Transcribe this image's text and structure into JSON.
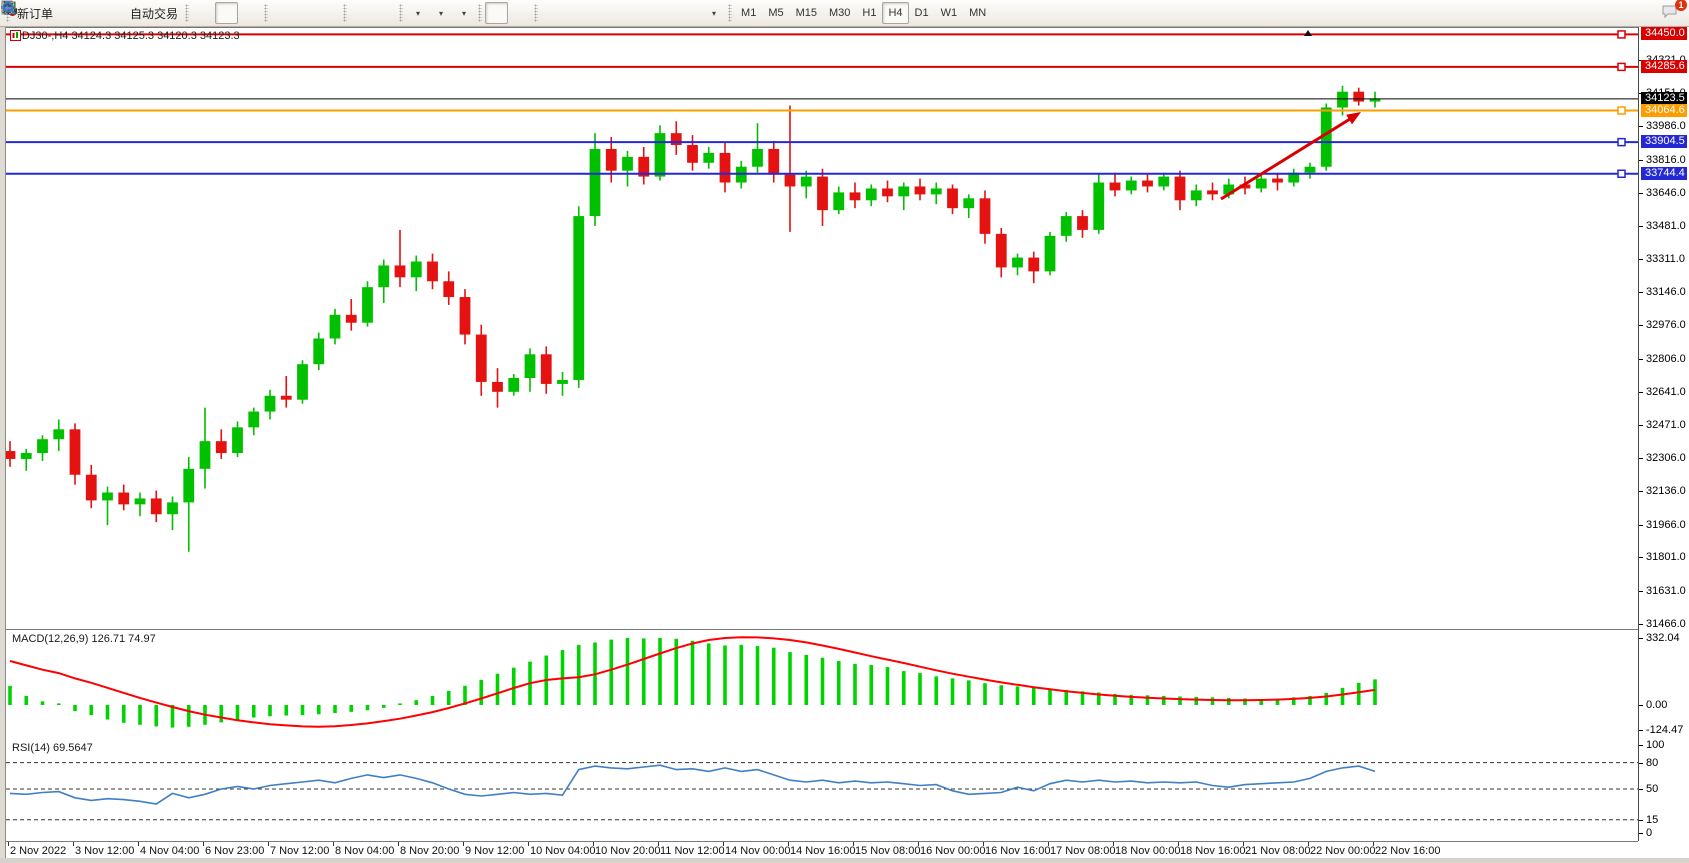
{
  "toolbar": {
    "new_order": "新订单",
    "auto_trading": "自动交易",
    "timeframes": [
      "M1",
      "M5",
      "M15",
      "M30",
      "H1",
      "H4",
      "D1",
      "W1",
      "MN"
    ],
    "active_timeframe": "H4",
    "notification_badge": "1",
    "icons": [
      "new-order-icon",
      "marketwatch-icon",
      "terminal-icon",
      "sound-icon",
      "autotrade-icon",
      "bar-chart-icon",
      "candle-chart-icon",
      "line-chart-icon",
      "zoom-in-icon",
      "zoom-out-icon",
      "tile-windows-icon",
      "autoscroll-icon",
      "chart-shift-icon",
      "indicators-icon",
      "periods-icon",
      "templates-icon",
      "cursor-icon",
      "crosshair-icon",
      "vline-icon",
      "hline-icon",
      "trendline-icon",
      "channel-icon",
      "fibonacci-icon",
      "text-icon",
      "label-icon",
      "shapes-icon",
      "search-icon",
      "chat-icon"
    ]
  },
  "chart": {
    "header": "DJ30-,H4  34124.3 34125.3 34120.3 34123.3",
    "price_ticks": [
      "34321.0",
      "34151.0",
      "33986.0",
      "33816.0",
      "33646.0",
      "33481.0",
      "33311.0",
      "33146.0",
      "32976.0",
      "32806.0",
      "32641.0",
      "32471.0",
      "32306.0",
      "32136.0",
      "31966.0",
      "31801.0",
      "31631.0",
      "31466.0"
    ],
    "hlines": [
      {
        "price": 34450.0,
        "label": "34450.0",
        "color": "#d90000",
        "width": 2,
        "marker": true
      },
      {
        "price": 34285.6,
        "label": "34285.6",
        "color": "#d90000",
        "width": 2,
        "marker": true
      },
      {
        "price": 34123.5,
        "label": "34123.5",
        "color": "#000000",
        "width": 1,
        "marker": false
      },
      {
        "price": 34064.6,
        "label": "34064.6",
        "color": "#ff9c00",
        "width": 2,
        "marker": true
      },
      {
        "price": 33904.5,
        "label": "33904.5",
        "color": "#2428d2",
        "width": 2,
        "marker": true
      },
      {
        "price": 33744.4,
        "label": "33744.4",
        "color": "#2428d2",
        "width": 2,
        "marker": true
      }
    ],
    "current_price": 34123.5,
    "time_labels": [
      "2 Nov 2022",
      "3 Nov 12:00",
      "4 Nov 04:00",
      "6 Nov 23:00",
      "7 Nov 12:00",
      "8 Nov 04:00",
      "8 Nov 20:00",
      "9 Nov 12:00",
      "10 Nov 04:00",
      "10 Nov 20:00",
      "11 Nov 12:00",
      "14 Nov 00:00",
      "14 Nov 16:00",
      "15 Nov 08:00",
      "16 Nov 00:00",
      "16 Nov 16:00",
      "17 Nov 08:00",
      "18 Nov 00:00",
      "18 Nov 16:00",
      "21 Nov 08:00",
      "22 Nov 00:00",
      "22 Nov 16:00"
    ]
  },
  "chart_data": {
    "type": "candlestick",
    "symbol": "DJ30-",
    "period": "H4",
    "title": "DJ30-,H4  34124.3 34125.3 34120.3 34123.3",
    "ylim": [
      31440,
      34480
    ],
    "candles_ohlc": [
      [
        32340,
        32390,
        32260,
        32300
      ],
      [
        32300,
        32350,
        32240,
        32330
      ],
      [
        32330,
        32420,
        32290,
        32400
      ],
      [
        32400,
        32500,
        32340,
        32450
      ],
      [
        32450,
        32480,
        32170,
        32220
      ],
      [
        32220,
        32270,
        32050,
        32090
      ],
      [
        32090,
        32160,
        31965,
        32130
      ],
      [
        32130,
        32170,
        32040,
        32070
      ],
      [
        32070,
        32130,
        32010,
        32100
      ],
      [
        32100,
        32140,
        31980,
        32020
      ],
      [
        32020,
        32110,
        31940,
        32080
      ],
      [
        32080,
        32310,
        31830,
        32250
      ],
      [
        32250,
        32560,
        32150,
        32390
      ],
      [
        32390,
        32450,
        32300,
        32330
      ],
      [
        32330,
        32490,
        32310,
        32460
      ],
      [
        32460,
        32560,
        32420,
        32540
      ],
      [
        32540,
        32650,
        32500,
        32620
      ],
      [
        32620,
        32720,
        32560,
        32600
      ],
      [
        32600,
        32800,
        32580,
        32780
      ],
      [
        32780,
        32940,
        32750,
        32910
      ],
      [
        32910,
        33060,
        32880,
        33030
      ],
      [
        33030,
        33110,
        32950,
        32990
      ],
      [
        32990,
        33200,
        32970,
        33170
      ],
      [
        33170,
        33310,
        33090,
        33280
      ],
      [
        33280,
        33460,
        33170,
        33220
      ],
      [
        33220,
        33330,
        33150,
        33300
      ],
      [
        33300,
        33340,
        33160,
        33200
      ],
      [
        33200,
        33250,
        33080,
        33120
      ],
      [
        33120,
        33160,
        32880,
        32930
      ],
      [
        32930,
        32980,
        32620,
        32690
      ],
      [
        32690,
        32760,
        32560,
        32640
      ],
      [
        32640,
        32730,
        32620,
        32710
      ],
      [
        32710,
        32860,
        32640,
        32830
      ],
      [
        32830,
        32870,
        32630,
        32680
      ],
      [
        32680,
        32740,
        32620,
        32700
      ],
      [
        32700,
        33580,
        32660,
        33530
      ],
      [
        33530,
        33950,
        33480,
        33870
      ],
      [
        33870,
        33930,
        33700,
        33760
      ],
      [
        33760,
        33860,
        33680,
        33830
      ],
      [
        33830,
        33880,
        33690,
        33730
      ],
      [
        33730,
        33990,
        33710,
        33950
      ],
      [
        33950,
        34010,
        33840,
        33890
      ],
      [
        33890,
        33940,
        33760,
        33800
      ],
      [
        33800,
        33880,
        33770,
        33850
      ],
      [
        33850,
        33900,
        33650,
        33700
      ],
      [
        33700,
        33810,
        33670,
        33780
      ],
      [
        33780,
        34000,
        33750,
        33870
      ],
      [
        33870,
        33910,
        33700,
        33740
      ],
      [
        33740,
        34090,
        33450,
        33680
      ],
      [
        33680,
        33760,
        33620,
        33730
      ],
      [
        33730,
        33770,
        33480,
        33560
      ],
      [
        33560,
        33680,
        33540,
        33650
      ],
      [
        33650,
        33700,
        33570,
        33610
      ],
      [
        33610,
        33690,
        33580,
        33670
      ],
      [
        33670,
        33710,
        33600,
        33630
      ],
      [
        33630,
        33700,
        33560,
        33680
      ],
      [
        33680,
        33720,
        33610,
        33640
      ],
      [
        33640,
        33700,
        33590,
        33670
      ],
      [
        33670,
        33690,
        33540,
        33570
      ],
      [
        33570,
        33640,
        33520,
        33620
      ],
      [
        33620,
        33660,
        33390,
        33440
      ],
      [
        33440,
        33470,
        33220,
        33270
      ],
      [
        33270,
        33340,
        33230,
        33320
      ],
      [
        33320,
        33350,
        33190,
        33250
      ],
      [
        33250,
        33450,
        33230,
        33430
      ],
      [
        33430,
        33550,
        33400,
        33530
      ],
      [
        33530,
        33560,
        33420,
        33460
      ],
      [
        33460,
        33740,
        33440,
        33700
      ],
      [
        33700,
        33750,
        33630,
        33660
      ],
      [
        33660,
        33730,
        33640,
        33710
      ],
      [
        33710,
        33740,
        33650,
        33680
      ],
      [
        33680,
        33750,
        33660,
        33730
      ],
      [
        33730,
        33760,
        33560,
        33610
      ],
      [
        33610,
        33690,
        33580,
        33660
      ],
      [
        33660,
        33700,
        33610,
        33640
      ],
      [
        33640,
        33720,
        33620,
        33690
      ],
      [
        33690,
        33730,
        33640,
        33670
      ],
      [
        33670,
        33740,
        33650,
        33720
      ],
      [
        33720,
        33750,
        33660,
        33700
      ],
      [
        33700,
        33770,
        33680,
        33750
      ],
      [
        33750,
        33800,
        33720,
        33780
      ],
      [
        33780,
        34100,
        33760,
        34080
      ],
      [
        34080,
        34190,
        34040,
        34160
      ],
      [
        34160,
        34180,
        34090,
        34110
      ],
      [
        34110,
        34160,
        34080,
        34124
      ]
    ],
    "indicators": {
      "macd": {
        "label": "MACD(12,26,9) 126.71 74.97",
        "params": "12,26,9",
        "value": 126.71,
        "signal_value": 74.97,
        "axis": [
          "332.04",
          "0.00",
          "-124.47"
        ],
        "histogram": [
          95,
          45,
          18,
          8,
          -30,
          -50,
          -72,
          -88,
          -98,
          -106,
          -112,
          -108,
          -98,
          -86,
          -72,
          -62,
          -56,
          -52,
          -50,
          -46,
          -40,
          -34,
          -26,
          -14,
          8,
          24,
          45,
          70,
          95,
          125,
          155,
          185,
          215,
          245,
          272,
          298,
          310,
          324,
          332,
          330,
          332,
          328,
          318,
          305,
          295,
          298,
          292,
          284,
          262,
          248,
          234,
          218,
          204,
          198,
          188,
          168,
          158,
          142,
          132,
          122,
          108,
          98,
          92,
          88,
          82,
          75,
          68,
          62,
          55,
          50,
          48,
          45,
          42,
          40,
          38,
          35,
          32,
          30,
          32,
          38,
          45,
          60,
          85,
          110,
          127
        ],
        "signal_line": [
          218,
          196,
          175,
          158,
          132,
          110,
          85,
          60,
          35,
          12,
          -10,
          -30,
          -48,
          -62,
          -76,
          -86,
          -95,
          -101,
          -106,
          -108,
          -105,
          -99,
          -91,
          -80,
          -68,
          -52,
          -35,
          -15,
          8,
          32,
          58,
          84,
          108,
          124,
          132,
          138,
          152,
          175,
          200,
          228,
          255,
          282,
          305,
          322,
          332,
          336,
          335,
          330,
          322,
          310,
          295,
          278,
          260,
          242,
          225,
          208,
          190,
          172,
          155,
          140,
          126,
          112,
          100,
          88,
          78,
          68,
          60,
          52,
          46,
          40,
          36,
          32,
          29,
          27,
          25,
          24,
          24,
          25,
          27,
          30,
          35,
          42,
          52,
          63,
          75
        ]
      },
      "rsi": {
        "label": "RSI(14) 69.5647",
        "period": 14,
        "value": 69.5647,
        "axis": [
          "100",
          "80",
          "50",
          "15",
          "0"
        ],
        "levels": [
          80,
          50,
          15
        ],
        "values": [
          45,
          44,
          46,
          47,
          40,
          37,
          39,
          38,
          36,
          33,
          45,
          40,
          44,
          50,
          53,
          50,
          54,
          56,
          58,
          60,
          57,
          62,
          66,
          63,
          66,
          62,
          57,
          50,
          44,
          42,
          44,
          46,
          44,
          45,
          43,
          72,
          76,
          74,
          73,
          75,
          77,
          72,
          73,
          70,
          74,
          70,
          72,
          66,
          60,
          58,
          60,
          57,
          59,
          57,
          58,
          56,
          54,
          55,
          48,
          44,
          45,
          46,
          52,
          48,
          56,
          60,
          58,
          60,
          58,
          59,
          57,
          58,
          57,
          58,
          54,
          52,
          55,
          56,
          57,
          58,
          62,
          70,
          74,
          76,
          70
        ]
      }
    },
    "annotations": {
      "trend_arrow": {
        "color": "#d90000",
        "from_price": 33620,
        "to_price": 34080
      }
    }
  },
  "colors": {
    "candle_up": "#00c000",
    "candle_down": "#e51212",
    "macd_histogram": "#00d400",
    "macd_signal": "#ff0000",
    "rsi_line": "#3f7fc4",
    "resistance_line": "#d90000",
    "support_line": "#2428d2",
    "orange_line": "#ff9c00",
    "current_price_line": "#000000",
    "arrow": "#d90000"
  }
}
